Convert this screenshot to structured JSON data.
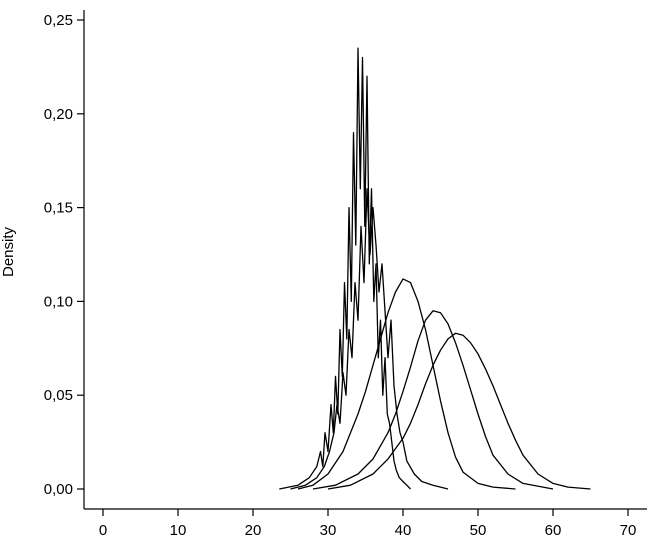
{
  "chart_data": {
    "type": "line",
    "ylabel": "Density",
    "xlim": [
      -2,
      72
    ],
    "ylim": [
      0,
      0.255
    ],
    "xticks": [
      0,
      10,
      20,
      30,
      40,
      50,
      60,
      70
    ],
    "xtick_labels": [
      "0",
      "10",
      "20",
      "30",
      "40",
      "50",
      "60",
      "70"
    ],
    "yticks": [
      0.0,
      0.05,
      0.1,
      0.15,
      0.2,
      0.25
    ],
    "ytick_labels": [
      "0,00",
      "0,05",
      "0,10",
      "0,15",
      "0,20",
      "0,25"
    ],
    "grid": false,
    "legend": "none",
    "line_color": "#000000",
    "series": [
      {
        "x": [
          23.5,
          26,
          27.5,
          28.5,
          29,
          29.3,
          29.6,
          30,
          30.4,
          30.7,
          31,
          31.3,
          31.6,
          31.9,
          32.2,
          32.5,
          32.8,
          33.1,
          33.4,
          33.7,
          34,
          34.3,
          34.6,
          34.9,
          35.2,
          35.5,
          35.8,
          36.1,
          36.4,
          36.7,
          37,
          37.3,
          37.6,
          37.9,
          38.2,
          38.5,
          38.8,
          39.1,
          39.5,
          40,
          40.5,
          41
        ],
        "y": [
          0,
          0.002,
          0.006,
          0.012,
          0.02,
          0.012,
          0.03,
          0.02,
          0.045,
          0.03,
          0.06,
          0.04,
          0.085,
          0.06,
          0.11,
          0.08,
          0.15,
          0.1,
          0.19,
          0.13,
          0.235,
          0.16,
          0.23,
          0.14,
          0.22,
          0.12,
          0.16,
          0.1,
          0.12,
          0.07,
          0.09,
          0.05,
          0.07,
          0.04,
          0.035,
          0.025,
          0.015,
          0.01,
          0.006,
          0.004,
          0.002,
          0
        ]
      },
      {
        "x": [
          25,
          27,
          28.5,
          29.5,
          30.2,
          30.8,
          31.2,
          31.6,
          32,
          32.4,
          32.8,
          33.2,
          33.6,
          34,
          34.4,
          34.8,
          35.2,
          35.6,
          36,
          36.4,
          36.8,
          37.2,
          37.6,
          38,
          38.4,
          38.8,
          39.2,
          39.6,
          40,
          40.5,
          41.5,
          42.5,
          44,
          46
        ],
        "y": [
          0,
          0.002,
          0.006,
          0.012,
          0.02,
          0.03,
          0.045,
          0.035,
          0.062,
          0.05,
          0.085,
          0.07,
          0.11,
          0.09,
          0.14,
          0.11,
          0.16,
          0.125,
          0.15,
          0.13,
          0.105,
          0.12,
          0.095,
          0.07,
          0.09,
          0.055,
          0.04,
          0.03,
          0.025,
          0.015,
          0.008,
          0.004,
          0.002,
          0
        ]
      },
      {
        "x": [
          26,
          28,
          30,
          32,
          34,
          35,
          36,
          37,
          38,
          39,
          40,
          41,
          42,
          43,
          44,
          45,
          46,
          47,
          48,
          50,
          52,
          55
        ],
        "y": [
          0,
          0.002,
          0.008,
          0.02,
          0.04,
          0.052,
          0.066,
          0.08,
          0.094,
          0.105,
          0.112,
          0.11,
          0.1,
          0.085,
          0.066,
          0.047,
          0.03,
          0.017,
          0.009,
          0.003,
          0.001,
          0
        ]
      },
      {
        "x": [
          28,
          31,
          34,
          36,
          38,
          39,
          40,
          41,
          42,
          43,
          44,
          45,
          46,
          47,
          48,
          49,
          50,
          51,
          52,
          54,
          56,
          60
        ],
        "y": [
          0,
          0.002,
          0.008,
          0.016,
          0.03,
          0.04,
          0.052,
          0.065,
          0.079,
          0.09,
          0.095,
          0.094,
          0.088,
          0.078,
          0.066,
          0.053,
          0.04,
          0.028,
          0.018,
          0.008,
          0.003,
          0
        ]
      },
      {
        "x": [
          30,
          33,
          36,
          38,
          40,
          41,
          42,
          43,
          44,
          45,
          46,
          47,
          48,
          49,
          50,
          51,
          52,
          53,
          54,
          55,
          56,
          58,
          60,
          62,
          65
        ],
        "y": [
          0,
          0.002,
          0.008,
          0.016,
          0.027,
          0.035,
          0.045,
          0.056,
          0.066,
          0.074,
          0.08,
          0.083,
          0.082,
          0.078,
          0.072,
          0.064,
          0.055,
          0.045,
          0.035,
          0.026,
          0.018,
          0.008,
          0.003,
          0.001,
          0
        ]
      }
    ]
  }
}
